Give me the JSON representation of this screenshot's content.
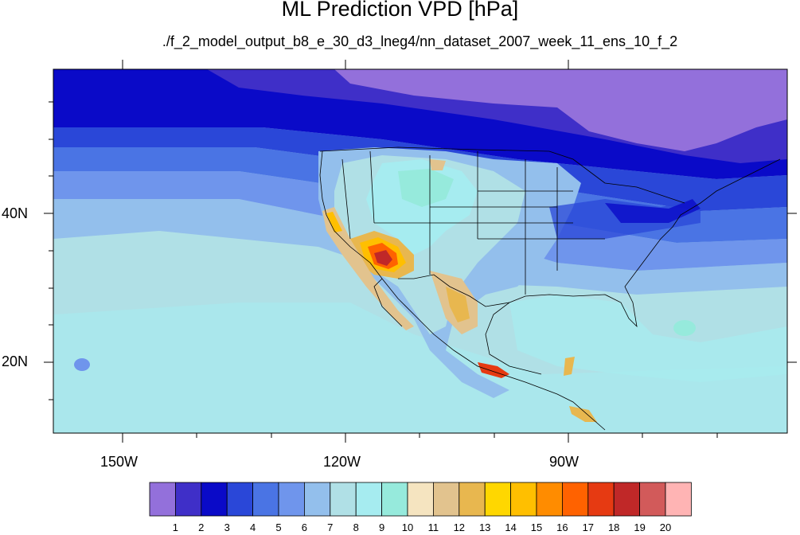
{
  "title": "ML Prediction VPD [hPa]",
  "subtitle": "./f_2_model_output_b8_e_30_d3_lneg4/nn_dataset_2007_week_11_ens_10_f_2",
  "lat_ticks": [
    "40N",
    "20N"
  ],
  "lon_ticks": [
    "150W",
    "120W",
    "90W"
  ],
  "colorbar": {
    "labels": [
      "1",
      "2",
      "3",
      "4",
      "5",
      "6",
      "7",
      "8",
      "9",
      "10",
      "11",
      "12",
      "13",
      "14",
      "15",
      "16",
      "17",
      "18",
      "19",
      "20"
    ],
    "colors": [
      "#9370db",
      "#3f2fc8",
      "#0a0ac8",
      "#2a47d8",
      "#4a74e4",
      "#6f95ec",
      "#93bfec",
      "#b0e0e6",
      "#a6ecf0",
      "#96eadc",
      "#f5e4c0",
      "#e2c38e",
      "#e8b74f",
      "#ffd700",
      "#ffbf00",
      "#ff8c00",
      "#ff6200",
      "#e63a12",
      "#c02828",
      "#d25a5a",
      "#ffb4b4"
    ]
  }
}
